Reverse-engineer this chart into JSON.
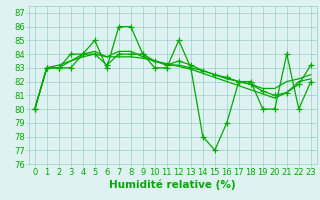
{
  "lines": [
    {
      "x": [
        0,
        1,
        2,
        3,
        4,
        5,
        6,
        7,
        8,
        9,
        10,
        11,
        12,
        13,
        14,
        15,
        16,
        17,
        18,
        19,
        20,
        21,
        22,
        23
      ],
      "y": [
        80,
        83,
        83,
        83,
        84,
        85,
        83,
        86,
        86,
        84,
        83,
        83,
        85,
        83,
        78,
        77,
        79,
        82,
        82,
        80,
        80,
        84,
        80,
        82
      ],
      "marker": true
    },
    {
      "x": [
        0,
        1,
        2,
        3,
        4,
        5,
        6,
        7,
        8,
        9,
        10,
        11,
        12,
        13,
        14,
        15,
        16,
        17,
        18,
        19,
        20,
        21,
        22,
        23
      ],
      "y": [
        80,
        83,
        83.2,
        83.5,
        83.8,
        84.0,
        83.8,
        83.8,
        83.8,
        83.7,
        83.5,
        83.3,
        83.1,
        82.9,
        82.6,
        82.3,
        82.0,
        81.7,
        81.4,
        81.1,
        80.8,
        81.2,
        82.0,
        82.2
      ],
      "marker": false
    },
    {
      "x": [
        0,
        1,
        2,
        3,
        4,
        5,
        6,
        7,
        8,
        9,
        10,
        11,
        12,
        13,
        14,
        15,
        16,
        17,
        18,
        19,
        20,
        21,
        22,
        23
      ],
      "y": [
        80,
        83,
        83,
        83.5,
        84,
        84.2,
        83.8,
        84.2,
        84.2,
        83.8,
        83.5,
        83.2,
        83.2,
        83.0,
        82.8,
        82.5,
        82.2,
        82.0,
        81.8,
        81.5,
        81.5,
        82.0,
        82.2,
        82.5
      ],
      "marker": false
    },
    {
      "x": [
        0,
        1,
        2,
        3,
        4,
        5,
        6,
        7,
        8,
        9,
        10,
        11,
        12,
        13,
        14,
        15,
        16,
        17,
        18,
        19,
        20,
        21,
        22,
        23
      ],
      "y": [
        80,
        83,
        83,
        84,
        84,
        84,
        83.2,
        84,
        84,
        84,
        83.5,
        83.2,
        83.5,
        83.2,
        82.8,
        82.5,
        82.3,
        82.0,
        81.8,
        81.3,
        81.0,
        81.2,
        81.8,
        83.2
      ],
      "marker": true
    }
  ],
  "xlim": [
    -0.5,
    23.5
  ],
  "ylim": [
    76,
    87.5
  ],
  "yticks": [
    76,
    77,
    78,
    79,
    80,
    81,
    82,
    83,
    84,
    85,
    86,
    87
  ],
  "xticks": [
    0,
    1,
    2,
    3,
    4,
    5,
    6,
    7,
    8,
    9,
    10,
    11,
    12,
    13,
    14,
    15,
    16,
    17,
    18,
    19,
    20,
    21,
    22,
    23
  ],
  "xlabel": "Humidité relative (%)",
  "bg_color": "#dff2f2",
  "grid_color": "#99cccc",
  "line_color": "#00aa00",
  "tick_color": "#00aa00",
  "label_color": "#00aa00",
  "xlabel_fontsize": 7.5,
  "tick_fontsize": 6.0,
  "linewidth": 0.9,
  "markersize": 4.5,
  "markeredgewidth": 0.9
}
